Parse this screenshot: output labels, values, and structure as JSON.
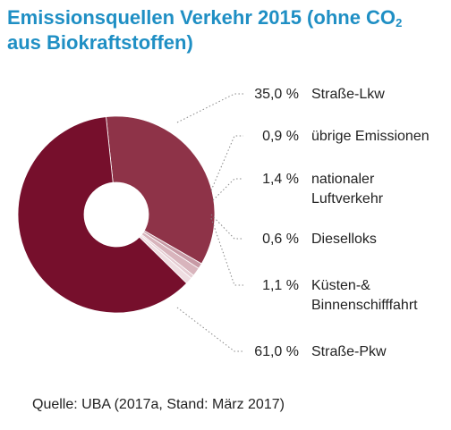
{
  "title": {
    "line1": "Emissionsquellen Verkehr 2015 (ohne CO",
    "co2_subscript": "2",
    "line2": "aus Biokraftstoffen)"
  },
  "source": "Quelle: UBA (2017a, Stand: März 2017)",
  "chart_data": {
    "type": "pie",
    "variant": "donut",
    "unit": "%",
    "decimal_separator": ",",
    "categories": [
      "Straße-Lkw",
      "übrige Emissionen",
      "nationaler Luftverkehr",
      "Dieselloks",
      "Küsten-& Binnenschifffahrt",
      "Straße-Pkw"
    ],
    "label_lines": [
      [
        "Straße-Lkw"
      ],
      [
        "übrige Emissionen"
      ],
      [
        "nationaler",
        "Luftverkehr"
      ],
      [
        "Dieselloks"
      ],
      [
        "Küsten-&",
        "Binnenschifffahrt"
      ],
      [
        "Straße-Pkw"
      ]
    ],
    "values": [
      35.0,
      0.9,
      1.4,
      0.6,
      1.1,
      61.0
    ],
    "value_labels": [
      "35,0 %",
      "0,9 %",
      "1,4 %",
      "0,6 %",
      "1,1 %",
      "61,0 %"
    ],
    "colors": [
      "#8e3348",
      "#c79aa5",
      "#d8b4bc",
      "#e6cdd3",
      "#efdde1",
      "#760f2c"
    ],
    "start_angle_deg": 96,
    "legend_position": "right"
  }
}
